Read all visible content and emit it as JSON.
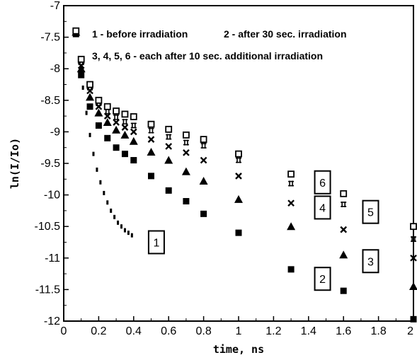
{
  "chart_data": {
    "type": "scatter",
    "xlabel": "time, ns",
    "ylabel": "ln(I/Io)",
    "xlim": [
      0,
      2
    ],
    "ylim": [
      -12,
      -7
    ],
    "x_ticks": [
      0,
      0.2,
      0.4,
      0.6,
      0.8,
      1,
      1.2,
      1.4,
      1.6,
      1.8,
      2
    ],
    "x_tick_labels": [
      "0",
      "0.2",
      "0.4",
      "0.6",
      "0.8",
      "1",
      "1.2",
      "1.4",
      "1.6",
      "1.8",
      "2"
    ],
    "y_ticks": [
      -7,
      -7.5,
      -8,
      -8.5,
      -9,
      -9.5,
      -10,
      -10.5,
      -11,
      -11.5,
      -12
    ],
    "y_tick_labels": [
      "-7",
      "-7.5",
      "-8",
      "-8.5",
      "-9",
      "-9.5",
      "-10",
      "-10.5",
      "-11",
      "-11.5",
      "-12"
    ],
    "grid": false,
    "annotations": [
      "1 - before irradiation",
      "2 - after 30 sec. irradiation",
      "3, 4, 5, 6 - each after 10 sec. additional irradiation"
    ],
    "series": [
      {
        "label": "1",
        "marker": "dash",
        "x": [
          0.07,
          0.09,
          0.11,
          0.13,
          0.15,
          0.17,
          0.19,
          0.21,
          0.23,
          0.25,
          0.27,
          0.29,
          0.31,
          0.33,
          0.35,
          0.37,
          0.39
        ],
        "y": [
          -7.4,
          -7.9,
          -8.3,
          -8.7,
          -9.05,
          -9.35,
          -9.6,
          -9.8,
          -9.97,
          -10.12,
          -10.25,
          -10.35,
          -10.44,
          -10.5,
          -10.56,
          -10.6,
          -10.64
        ]
      },
      {
        "label": "2",
        "marker": "filled-square",
        "x": [
          0.07,
          0.1,
          0.15,
          0.2,
          0.25,
          0.3,
          0.35,
          0.4,
          0.5,
          0.6,
          0.7,
          0.8,
          1.0,
          1.3,
          1.6,
          2.0
        ],
        "y": [
          -7.45,
          -8.1,
          -8.6,
          -8.9,
          -9.1,
          -9.25,
          -9.35,
          -9.45,
          -9.7,
          -9.93,
          -10.1,
          -10.3,
          -10.6,
          -11.18,
          -11.52,
          -11.97
        ]
      },
      {
        "label": "3",
        "marker": "filled-triangle",
        "x": [
          0.07,
          0.1,
          0.15,
          0.2,
          0.25,
          0.3,
          0.35,
          0.4,
          0.5,
          0.6,
          0.7,
          0.8,
          1.0,
          1.3,
          1.6,
          2.0
        ],
        "y": [
          -7.42,
          -8.0,
          -8.45,
          -8.7,
          -8.85,
          -8.97,
          -9.05,
          -9.15,
          -9.32,
          -9.45,
          -9.63,
          -9.78,
          -10.07,
          -10.5,
          -10.95,
          -11.45
        ]
      },
      {
        "label": "4",
        "marker": "x",
        "x": [
          0.07,
          0.1,
          0.15,
          0.2,
          0.25,
          0.3,
          0.35,
          0.4,
          0.5,
          0.6,
          0.7,
          0.8,
          1.0,
          1.3,
          1.6,
          2.0
        ],
        "y": [
          -7.4,
          -7.95,
          -8.35,
          -8.6,
          -8.75,
          -8.85,
          -8.93,
          -9.0,
          -9.12,
          -9.23,
          -9.33,
          -9.45,
          -9.7,
          -10.13,
          -10.55,
          -11.0
        ]
      },
      {
        "label": "5",
        "marker": "hash-box",
        "x": [
          0.07,
          0.1,
          0.15,
          0.2,
          0.25,
          0.3,
          0.35,
          0.4,
          0.5,
          0.6,
          0.7,
          0.8,
          1.0,
          1.3,
          1.6,
          2.0
        ],
        "y": [
          -7.4,
          -7.9,
          -8.3,
          -8.55,
          -8.68,
          -8.77,
          -8.84,
          -8.9,
          -8.98,
          -9.08,
          -9.17,
          -9.22,
          -9.45,
          -9.82,
          -10.15,
          -10.7
        ]
      },
      {
        "label": "6",
        "marker": "open-square",
        "x": [
          0.07,
          0.1,
          0.15,
          0.2,
          0.25,
          0.3,
          0.35,
          0.4,
          0.5,
          0.6,
          0.7,
          0.8,
          1.0,
          1.3,
          1.6,
          2.0
        ],
        "y": [
          -7.4,
          -7.85,
          -8.25,
          -8.5,
          -8.6,
          -8.67,
          -8.72,
          -8.76,
          -8.88,
          -8.96,
          -9.05,
          -9.12,
          -9.35,
          -9.67,
          -9.98,
          -10.5
        ]
      }
    ],
    "box_labels": [
      {
        "text": "1",
        "x": 0.53,
        "y": -10.75
      },
      {
        "text": "2",
        "x": 1.48,
        "y": -11.33
      },
      {
        "text": "3",
        "x": 1.755,
        "y": -11.05
      },
      {
        "text": "4",
        "x": 1.48,
        "y": -10.2
      },
      {
        "text": "5",
        "x": 1.755,
        "y": -10.27
      },
      {
        "text": "6",
        "x": 1.48,
        "y": -9.8
      }
    ]
  }
}
